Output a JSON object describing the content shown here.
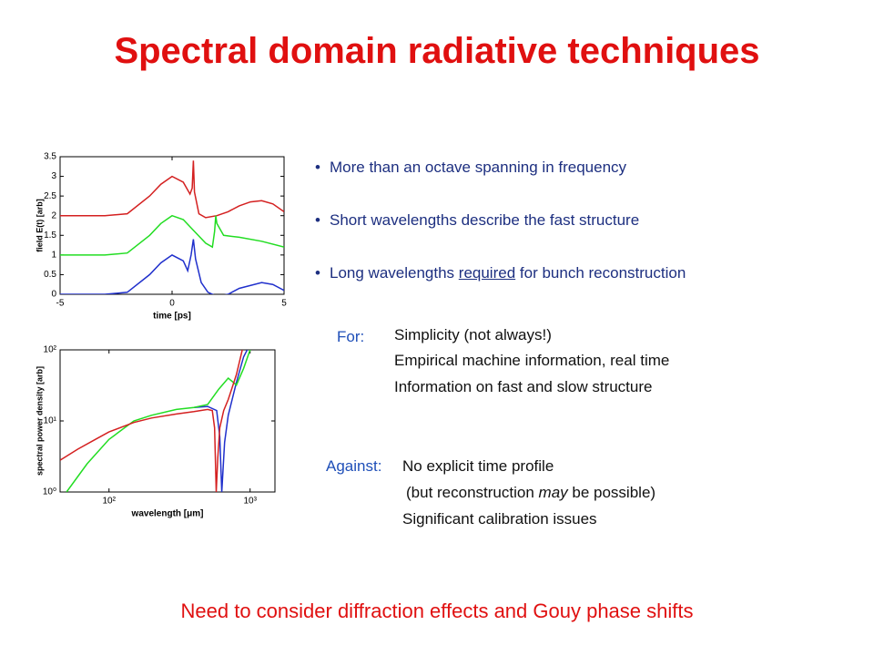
{
  "title": "Spectral domain radiative techniques",
  "bullets": [
    [
      "More than an octave spanning in frequency"
    ],
    [
      "Short wavelengths describe the fast structure"
    ],
    [
      "Long wavelengths",
      "required",
      "for bunch reconstruction"
    ]
  ],
  "for": {
    "label": "For:",
    "items": [
      [
        "Simplicity (not always!)"
      ],
      [
        "Empirical machine information, real time"
      ],
      [
        "Information on fast and slow structure"
      ]
    ]
  },
  "against": {
    "label": "Against:",
    "items": [
      [
        "No explicit time profile"
      ],
      [
        "(but reconstruction",
        "may",
        "be possible)"
      ],
      [
        "Significant calibration issues"
      ]
    ]
  },
  "footer": "Need to consider diffraction effects and Gouy phase shifts",
  "chart_data": [
    {
      "type": "line",
      "xlabel": "time [ps]",
      "ylabel": "field E(t) [arb]",
      "xlim": [
        -5,
        5
      ],
      "ylim": [
        0,
        3.5
      ],
      "xticks": [
        -5,
        0,
        5
      ],
      "yticks": [
        0,
        0.5,
        1,
        1.5,
        2,
        2.5,
        3,
        3.5
      ],
      "series": [
        {
          "color": "#d42020",
          "x": [
            -5,
            -3,
            -2,
            -1,
            -0.5,
            0,
            0.5,
            0.8,
            0.9,
            0.95,
            1.0,
            1.2,
            1.5,
            2,
            2.5,
            3,
            3.5,
            4,
            4.5,
            5
          ],
          "values": [
            2,
            2,
            2.05,
            2.5,
            2.8,
            3,
            2.85,
            2.55,
            2.7,
            3.4,
            2.6,
            2.05,
            1.95,
            2,
            2.1,
            2.25,
            2.35,
            2.38,
            2.3,
            2.1
          ]
        },
        {
          "color": "#22dd22",
          "x": [
            -5,
            -3,
            -2,
            -1,
            -0.5,
            0,
            0.5,
            1,
            1.5,
            1.8,
            1.9,
            1.95,
            2.0,
            2.3,
            3,
            4,
            5
          ],
          "values": [
            1,
            1,
            1.05,
            1.5,
            1.8,
            2,
            1.9,
            1.6,
            1.3,
            1.2,
            1.6,
            2,
            1.8,
            1.5,
            1.45,
            1.35,
            1.2
          ]
        },
        {
          "color": "#2030cc",
          "x": [
            -5,
            -3,
            -2,
            -1,
            -0.5,
            0,
            0.5,
            0.7,
            0.85,
            0.95,
            1.05,
            1.3,
            1.6,
            2,
            2.5,
            3,
            4,
            4.5,
            5
          ],
          "values": [
            0,
            0,
            0.05,
            0.5,
            0.8,
            1,
            0.85,
            0.6,
            1.0,
            1.4,
            0.9,
            0.3,
            0.05,
            -0.05,
            0,
            0.15,
            0.3,
            0.25,
            0.1
          ]
        }
      ]
    },
    {
      "type": "line",
      "log_x": true,
      "log_y": true,
      "xlabel": "wavelength [μm]",
      "ylabel": "spectral power density [arb]",
      "xlim": [
        45,
        1500
      ],
      "ylim": [
        1,
        100
      ],
      "xticks": [
        {
          "value": 100,
          "label": "10²"
        },
        {
          "value": 1000,
          "label": "10³"
        }
      ],
      "yticks": [
        {
          "value": 1,
          "label": "10⁰"
        },
        {
          "value": 10,
          "label": "10¹"
        },
        {
          "value": 100,
          "label": "10²"
        }
      ],
      "series": [
        {
          "color": "#2030cc",
          "x": [
            400,
            500,
            580,
            610,
            630,
            660,
            700,
            800,
            900,
            1000
          ],
          "values": [
            15.5,
            16,
            14,
            6,
            1,
            5,
            12,
            35,
            80,
            120
          ]
        },
        {
          "color": "#22dd22",
          "x": [
            50,
            70,
            100,
            150,
            200,
            300,
            400,
            500,
            600,
            700,
            800,
            900,
            1000,
            1100
          ],
          "values": [
            1,
            2.5,
            5.5,
            10,
            12,
            14.5,
            15.5,
            17,
            28,
            40,
            32,
            55,
            100,
            130
          ]
        },
        {
          "color": "#d42020",
          "x": [
            45,
            60,
            80,
            100,
            150,
            200,
            300,
            400,
            500,
            540,
            560,
            575,
            590,
            610,
            650,
            700,
            800,
            900
          ],
          "values": [
            2.8,
            4,
            5.5,
            7,
            9.5,
            11,
            12.5,
            13.5,
            14.5,
            14,
            8,
            1,
            3,
            8,
            14,
            20,
            45,
            120
          ]
        }
      ]
    }
  ]
}
